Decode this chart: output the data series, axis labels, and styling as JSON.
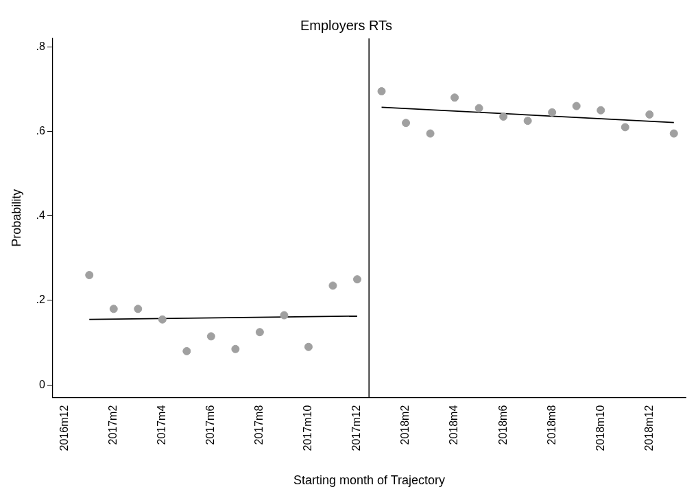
{
  "chart_data": {
    "type": "scatter",
    "title": "Employers RTs",
    "xlabel": "Starting month of Trajectory",
    "ylabel": "Probability",
    "xlim": [
      "2016-11-16",
      "2019-01-16"
    ],
    "xticks": [
      {
        "value": "2016-12",
        "label": "2016m12"
      },
      {
        "value": "2017-02",
        "label": "2017m2"
      },
      {
        "value": "2017-04",
        "label": "2017m4"
      },
      {
        "value": "2017-06",
        "label": "2017m6"
      },
      {
        "value": "2017-08",
        "label": "2017m8"
      },
      {
        "value": "2017-10",
        "label": "2017m10"
      },
      {
        "value": "2017-12",
        "label": "2017m12"
      },
      {
        "value": "2018-02",
        "label": "2018m2"
      },
      {
        "value": "2018-04",
        "label": "2018m4"
      },
      {
        "value": "2018-06",
        "label": "2018m6"
      },
      {
        "value": "2018-08",
        "label": "2018m8"
      },
      {
        "value": "2018-10",
        "label": "2018m10"
      },
      {
        "value": "2018-12",
        "label": "2018m12"
      }
    ],
    "ylim": [
      -0.03,
      0.82
    ],
    "yticks": [
      0,
      {
        "value": 0.2,
        "label": ".2"
      },
      {
        "value": 0.4,
        "label": ".4"
      },
      {
        "value": 0.6,
        "label": ".6"
      },
      {
        "value": 0.8,
        "label": ".8"
      }
    ],
    "grid": false,
    "legend": false,
    "marker": "circle",
    "ref_lines": [
      {
        "axis": "x",
        "value": "2017-12-16",
        "color": "#000000"
      }
    ],
    "series": [
      {
        "color": "#a0a0a0",
        "x": [
          "2017-01",
          "2017-02",
          "2017-03",
          "2017-04",
          "2017-05",
          "2017-06",
          "2017-07",
          "2017-08",
          "2017-09",
          "2017-10",
          "2017-11",
          "2017-12",
          "2018-01",
          "2018-02",
          "2018-03",
          "2018-04",
          "2018-05",
          "2018-06",
          "2018-07",
          "2018-08",
          "2018-09",
          "2018-10",
          "2018-11",
          "2018-12",
          "2019-01"
        ],
        "values": [
          0.26,
          0.18,
          0.18,
          0.155,
          0.08,
          0.115,
          0.085,
          0.125,
          0.165,
          0.09,
          0.235,
          0.25,
          0.695,
          0.62,
          0.595,
          0.68,
          0.655,
          0.635,
          0.625,
          0.645,
          0.66,
          0.65,
          0.61,
          0.64,
          0.595
        ]
      },
      {
        "type": "line",
        "marker": "none",
        "color": "#000000",
        "x": [
          "2017-01",
          "2017-12"
        ],
        "values": [
          0.155,
          0.163
        ]
      },
      {
        "type": "line",
        "marker": "none",
        "color": "#000000",
        "x": [
          "2018-01",
          "2019-01"
        ],
        "values": [
          0.657,
          0.621
        ]
      }
    ]
  }
}
